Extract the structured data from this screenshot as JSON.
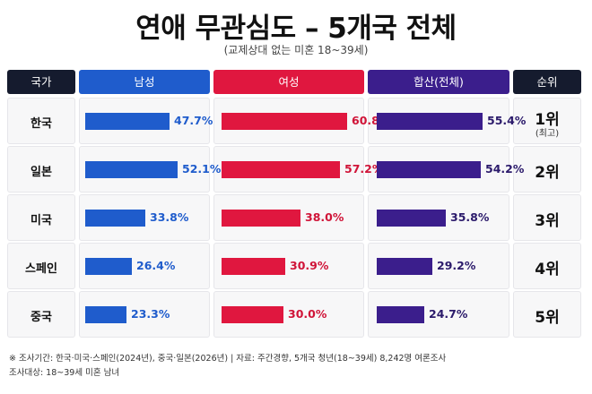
{
  "title": "연애 무관심도 – 5개국 전체",
  "subtitle": "(교제상대 없는 미혼 18~39세)",
  "columns": {
    "country": "국가",
    "male": "남성",
    "female": "여성",
    "combined": "합산(전체)",
    "rank": "순위"
  },
  "colors": {
    "header_dark": "#151b2e",
    "male": "#1f5ccc",
    "female": "#e0173f",
    "combined": "#3b1e8c",
    "male_text": "#1f5ccc",
    "female_text": "#d01438",
    "combined_text": "#2b1a6b"
  },
  "rows": [
    {
      "country": "한국",
      "male": "47.7%",
      "female": "60.8%",
      "combined": "55.4%",
      "rank": "1위",
      "rank_note": "(최고)"
    },
    {
      "country": "일본",
      "male": "52.1%",
      "female": "57.2%",
      "combined": "54.2%",
      "rank": "2위",
      "rank_note": ""
    },
    {
      "country": "미국",
      "male": "33.8%",
      "female": "38.0%",
      "combined": "35.8%",
      "rank": "3위",
      "rank_note": ""
    },
    {
      "country": "스페인",
      "male": "26.4%",
      "female": "30.9%",
      "combined": "29.2%",
      "rank": "4위",
      "rank_note": ""
    },
    {
      "country": "중국",
      "male": "23.3%",
      "female": "30.0%",
      "combined": "24.7%",
      "rank": "5위",
      "rank_note": ""
    }
  ],
  "chart_data": {
    "type": "bar",
    "categories": [
      "한국",
      "일본",
      "미국",
      "스페인",
      "중국"
    ],
    "series": [
      {
        "name": "남성",
        "values": [
          47.7,
          52.1,
          33.8,
          26.4,
          23.3
        ]
      },
      {
        "name": "여성",
        "values": [
          60.8,
          57.2,
          38.0,
          30.9,
          30.0
        ]
      },
      {
        "name": "합산(전체)",
        "values": [
          55.4,
          54.2,
          35.8,
          29.2,
          24.7
        ]
      }
    ],
    "ranks": [
      "1위",
      "2위",
      "3위",
      "4위",
      "5위"
    ],
    "title": "연애 무관심도 – 5개국 전체",
    "subtitle": "(교제상대 없는 미혼 18~39세)"
  },
  "footnotes": {
    "line1": "※ 조사기간: 한국·미국·스페인(2024년), 중국·일본(2026년)   |   자료: 주간경향, 5개국 청년(18~39세) 8,242명 여론조사",
    "line2": "조사대상: 18~39세 미혼 남녀"
  }
}
